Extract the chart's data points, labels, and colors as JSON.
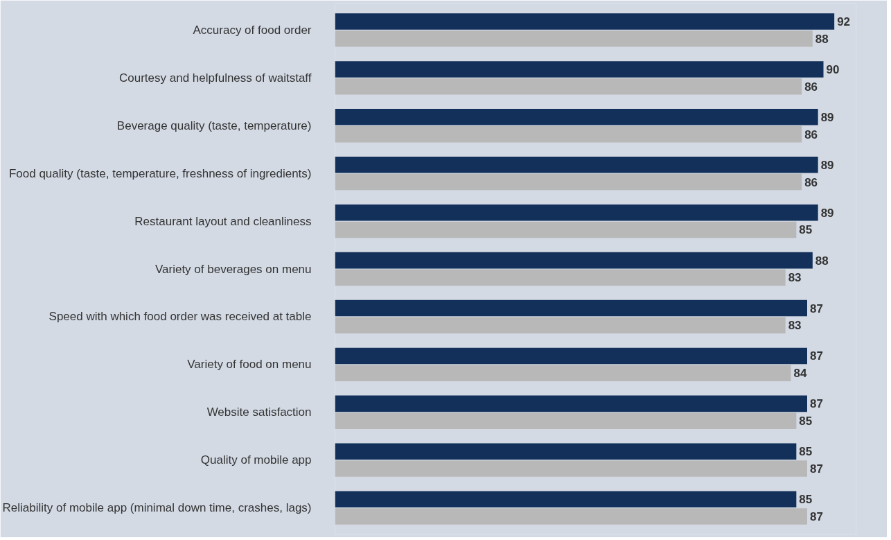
{
  "chart_data": {
    "type": "bar",
    "orientation": "horizontal",
    "categories": [
      "Accuracy of food order",
      "Courtesy and helpfulness of waitstaff",
      "Beverage quality (taste, temperature)",
      "Food quality (taste, temperature, freshness of ingredients)",
      "Restaurant layout and cleanliness",
      "Variety of beverages on menu",
      "Speed with which food order was received at table",
      "Variety of food on menu",
      "Website satisfaction",
      "Quality of mobile app",
      "Reliability of mobile app (minimal down time, crashes, lags)"
    ],
    "series": [
      {
        "color": "#13305a",
        "values": [
          92,
          90,
          89,
          89,
          89,
          88,
          87,
          87,
          87,
          85,
          85
        ]
      },
      {
        "color": "#b8b8b8",
        "values": [
          88,
          86,
          86,
          86,
          85,
          83,
          83,
          84,
          85,
          87,
          87
        ]
      }
    ],
    "xlim": [
      0,
      96
    ],
    "tick_labels": "y",
    "grid": false,
    "data_labels": true
  }
}
